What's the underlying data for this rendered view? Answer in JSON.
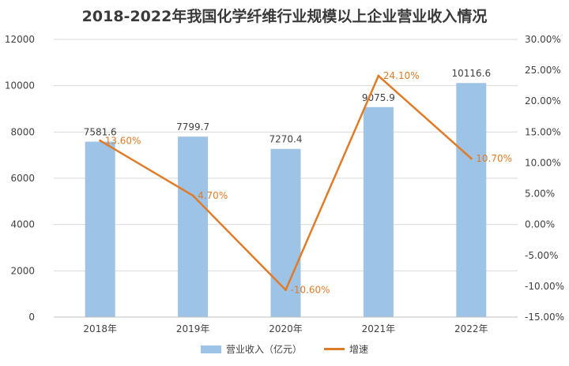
{
  "chart_data": {
    "type": "bar",
    "title": "2018-2022年我国化学纤维行业规模以上企业营业收入情况",
    "categories": [
      "2018年",
      "2019年",
      "2020年",
      "2021年",
      "2022年"
    ],
    "series": [
      {
        "name": "营业收入（亿元）",
        "type": "bar",
        "axis": "left",
        "values": [
          7581.6,
          7799.7,
          7270.4,
          9075.9,
          10116.6
        ],
        "labels": [
          "7581.6",
          "7799.7",
          "7270.4",
          "9075.9",
          "10116.6"
        ],
        "color": "#9dc3e6"
      },
      {
        "name": "增速",
        "type": "line",
        "axis": "right",
        "values": [
          13.6,
          4.7,
          -10.6,
          24.1,
          10.7
        ],
        "labels": [
          "13.60%",
          "4.70%",
          "-10.60%",
          "24.10%",
          "10.70%"
        ],
        "color": "#e07b28"
      }
    ],
    "y_left": {
      "ylim": [
        0,
        12000
      ],
      "ticks": [
        "0",
        "2000",
        "4000",
        "6000",
        "8000",
        "10000",
        "12000"
      ]
    },
    "y_right": {
      "ylim": [
        -15,
        30
      ],
      "ticks": [
        "-15.00%",
        "-10.00%",
        "-5.00%",
        "0.00%",
        "5.00%",
        "10.00%",
        "15.00%",
        "20.00%",
        "25.00%",
        "30.00%"
      ]
    },
    "grid": true,
    "legend_position": "bottom"
  }
}
